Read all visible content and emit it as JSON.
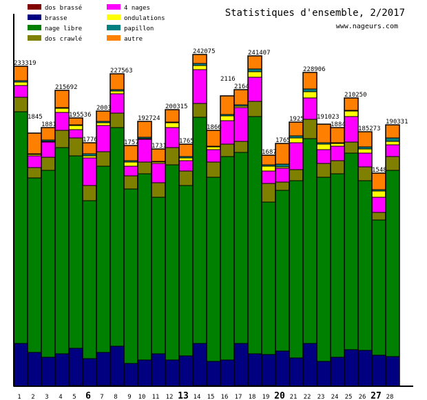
{
  "chart_data": {
    "type": "bar",
    "stacked": true,
    "title": "Statistiques d'ensemble, 2/2017",
    "subtitle": "www.nageurs.com",
    "categories": [
      "1",
      "2",
      "3",
      "4",
      "5",
      "6",
      "7",
      "8",
      "9",
      "10",
      "11",
      "12",
      "13",
      "14",
      "15",
      "16",
      "17",
      "18",
      "19",
      "20",
      "21",
      "22",
      "23",
      "24",
      "25",
      "26",
      "27",
      "28"
    ],
    "emphasized_categories": [
      "6",
      "13",
      "20",
      "27"
    ],
    "ylim": [
      0,
      270000
    ],
    "grid": false,
    "legend_placement": "top-left",
    "bar_labels": [
      "233319",
      "1845",
      "1881",
      "215692",
      "195536",
      "1776",
      "2003",
      "227563",
      "1757",
      "192724",
      "1731",
      "200315",
      "1765",
      "242075",
      "1866",
      "2116",
      "2164",
      "241407",
      "1687",
      "1765",
      "1925",
      "228906",
      "191023",
      "1884",
      "210250",
      "185273",
      "1548",
      "190331"
    ],
    "series": [
      {
        "name": "dos brassé",
        "color": "#800000",
        "values": [
          0,
          0,
          0,
          0,
          500,
          0,
          500,
          500,
          0,
          0,
          0,
          0,
          0,
          500,
          500,
          0,
          500,
          500,
          500,
          0,
          0,
          0,
          0,
          0,
          0,
          0,
          0,
          0
        ]
      },
      {
        "name": "brasse",
        "color": "#000080",
        "values": [
          31000,
          24500,
          21000,
          23500,
          27000,
          20000,
          24000,
          28500,
          16500,
          19000,
          23500,
          19000,
          22000,
          30500,
          17500,
          19000,
          30500,
          23000,
          22500,
          25500,
          20500,
          31000,
          18000,
          21000,
          26500,
          26000,
          22500,
          21500
        ]
      },
      {
        "name": "nage libre",
        "color": "#008000",
        "values": [
          168000,
          126500,
          135500,
          149500,
          139500,
          114500,
          135000,
          158500,
          126500,
          135000,
          113500,
          141500,
          123500,
          164000,
          133500,
          147500,
          138500,
          172000,
          110500,
          116500,
          128500,
          148500,
          133500,
          133000,
          142500,
          123000,
          98000,
          135000
        ]
      },
      {
        "name": "dos crawlé",
        "color": "#808000",
        "values": [
          10500,
          7500,
          9500,
          12500,
          13000,
          11000,
          10500,
          10500,
          9500,
          8500,
          10500,
          12500,
          10500,
          10000,
          11000,
          9000,
          8000,
          11000,
          13500,
          6000,
          8000,
          14000,
          10000,
          9500,
          8000,
          10000,
          5500,
          10000
        ]
      },
      {
        "name": "4 nages",
        "color": "#ff00ff",
        "values": [
          8500,
          8500,
          11000,
          13000,
          6000,
          20000,
          19000,
          14000,
          7000,
          16500,
          14000,
          14500,
          7500,
          24500,
          9000,
          17000,
          24500,
          17500,
          9000,
          10000,
          19500,
          15500,
          10000,
          10500,
          18500,
          10000,
          11000,
          8500
        ]
      },
      {
        "name": "ondulations",
        "color": "#ffff00",
        "values": [
          2500,
          1000,
          500,
          3000,
          3000,
          1500,
          2000,
          2000,
          3000,
          500,
          1000,
          3500,
          2000,
          3000,
          2000,
          3500,
          1000,
          4000,
          3500,
          1000,
          3500,
          4500,
          4000,
          2000,
          4000,
          3000,
          4500,
          2500
        ]
      },
      {
        "name": "papillon",
        "color": "#008080",
        "values": [
          1000,
          500,
          1000,
          500,
          500,
          1500,
          1000,
          1000,
          1000,
          1000,
          500,
          500,
          1000,
          1500,
          500,
          1000,
          1000,
          2000,
          1000,
          2000,
          1500,
          2000,
          1000,
          500,
          500,
          1500,
          1000,
          2500
        ]
      },
      {
        "name": "autre",
        "color": "#ff8000",
        "values": [
          10500,
          15000,
          9000,
          12500,
          5000,
          8000,
          7500,
          11500,
          11000,
          11500,
          9000,
          9000,
          9000,
          6500,
          11500,
          13500,
          11000,
          9500,
          7000,
          15000,
          10000,
          12000,
          13500,
          11000,
          9000,
          11000,
          12000,
          9500
        ]
      }
    ]
  }
}
